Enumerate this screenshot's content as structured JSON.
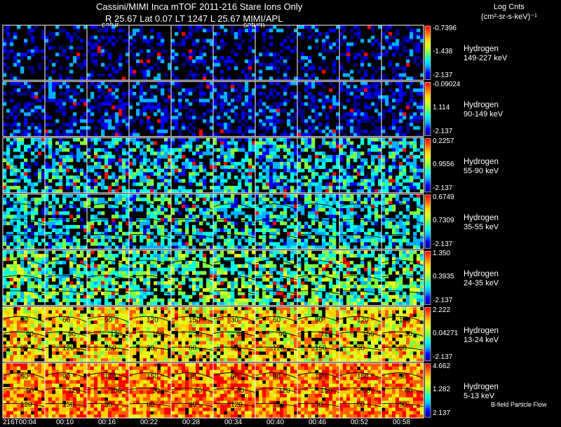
{
  "header": {
    "title": "Cassini/MIMI Inca mTOF  2011-216   Stare   Ions Only",
    "subtitle": "R         25.67  Lat 0.07  LT 1247  L          25.67   MIMI/APL",
    "units_line1": "Log Cnts",
    "units_line2": "(cm²-sr-s-keV)⁻¹"
  },
  "footer_label": "B-field Particle Flow",
  "saturn_labels": [
    "satur",
    "saturn"
  ],
  "chart_data": {
    "type": "heatmap",
    "title": "Cassini/MIMI Inca mTOF  2011-216   Stare   Ions Only",
    "xlabel": "",
    "time_labels": [
      "216T00:04",
      "00:10",
      "00:16",
      "00:22",
      "00:28",
      "00:34",
      "00:40",
      "00:46",
      "00:52",
      "00:58"
    ],
    "colorscale": [
      "#00008b",
      "#0000ff",
      "#00b0ff",
      "#00ffe0",
      "#80ff40",
      "#e0ff20",
      "#ffd000",
      "#ff6000",
      "#ff0000"
    ],
    "panels": [
      {
        "species": "Hydrogen",
        "energy": "149-227 keV",
        "cb_max": "-0.7396",
        "cb_mid": "-1.438",
        "cb_min": "-2.137",
        "level": 0.12,
        "coverage": 0.38
      },
      {
        "species": "Hydrogen",
        "energy": "90-149 keV",
        "cb_max": "-0.09024",
        "cb_mid": "1.114",
        "cb_min": "-2.137",
        "level": 0.14,
        "coverage": 0.5
      },
      {
        "species": "Hydrogen",
        "energy": "55-90 keV",
        "cb_max": "0.2257",
        "cb_mid": "0.9556",
        "cb_min": "-2.137",
        "level": 0.33,
        "coverage": 0.6
      },
      {
        "species": "Hydrogen",
        "energy": "35-55 keV",
        "cb_max": "0.6749",
        "cb_mid": "0.7309",
        "cb_min": "-2.137",
        "level": 0.36,
        "coverage": 0.62
      },
      {
        "species": "Hydrogen",
        "energy": "24-35 keV",
        "cb_max": "1.350",
        "cb_mid": "0.3935",
        "cb_min": "-2.137",
        "level": 0.45,
        "coverage": 0.68
      },
      {
        "species": "Hydrogen",
        "energy": "13-24 keV",
        "cb_max": "2.222",
        "cb_mid": "0.04271",
        "cb_min": "-2.137",
        "level": 0.68,
        "coverage": 0.85
      },
      {
        "species": "Hydrogen",
        "energy": "5-13 keV",
        "cb_max": "4.662",
        "cb_mid": "1.282",
        "cb_min": "2.137",
        "level": 0.8,
        "coverage": 0.97
      }
    ],
    "contour_labels": [
      "30",
      "60",
      "90",
      "120",
      "150"
    ]
  }
}
